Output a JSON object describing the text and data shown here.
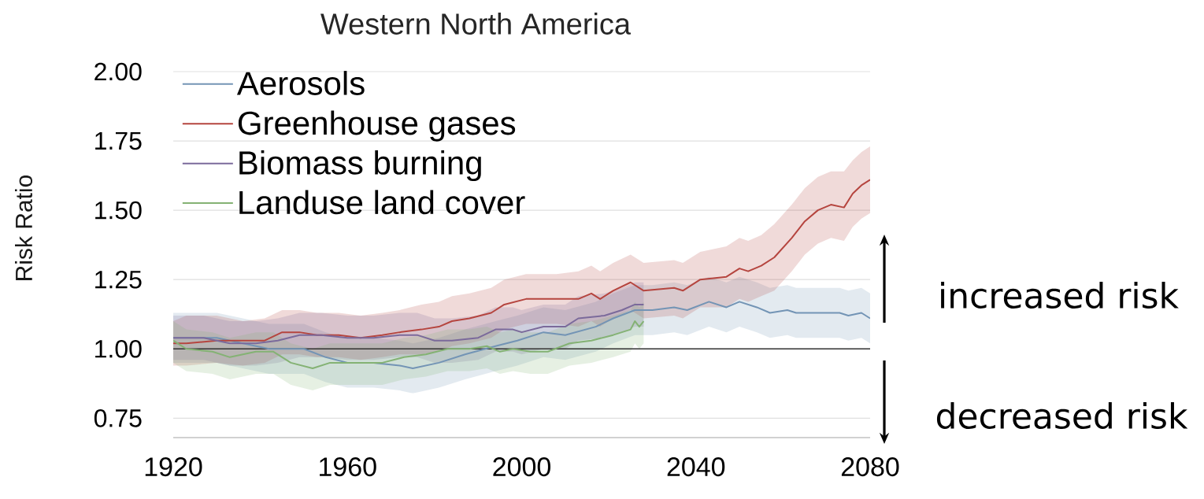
{
  "chart_data": {
    "type": "line",
    "title": "Western North America",
    "ylabel": "Risk Ratio",
    "annotations": [
      "increased risk",
      "decreased risk"
    ],
    "xlim": [
      1920,
      2080
    ],
    "ylim": [
      0.68,
      2.0
    ],
    "xticks": [
      1920,
      1960,
      2000,
      2040,
      2080
    ],
    "yticks": [
      {
        "value": 0.75,
        "label": "0.75"
      },
      {
        "value": 1.0,
        "label": "1.00"
      },
      {
        "value": 1.25,
        "label": "1.25"
      },
      {
        "value": 1.5,
        "label": "1.50"
      },
      {
        "value": 1.75,
        "label": "1.75"
      },
      {
        "value": 2.0,
        "label": "2.00"
      }
    ],
    "grid": "y",
    "legend": "top left",
    "marker": "none",
    "line_style": "solid",
    "ref_lines": [
      {
        "axis": "y",
        "value": 1,
        "color": "#333333"
      }
    ],
    "series": [
      {
        "name": "Aerosols",
        "color": "#7394b5",
        "x": [
          1920,
          1924,
          1930,
          1936,
          1942,
          1950,
          1955,
          1960,
          1966,
          1972,
          1975,
          1981,
          1987,
          1994,
          1999,
          2005,
          2010,
          2017,
          2021,
          2026,
          2030,
          2035,
          2038,
          2043,
          2047,
          2050,
          2054,
          2057,
          2061,
          2063,
          2068,
          2073,
          2075,
          2078,
          2080
        ],
        "values": [
          1.04,
          1.04,
          1.04,
          1.02,
          1.0,
          1.0,
          0.97,
          0.95,
          0.95,
          0.94,
          0.93,
          0.95,
          0.98,
          1.01,
          1.03,
          1.06,
          1.05,
          1.08,
          1.11,
          1.14,
          1.14,
          1.15,
          1.14,
          1.17,
          1.15,
          1.17,
          1.15,
          1.13,
          1.14,
          1.13,
          1.13,
          1.13,
          1.12,
          1.13,
          1.11
        ],
        "upper": [
          1.13,
          1.13,
          1.13,
          1.11,
          1.09,
          1.09,
          1.06,
          1.04,
          1.04,
          1.03,
          1.02,
          1.04,
          1.07,
          1.1,
          1.12,
          1.15,
          1.14,
          1.17,
          1.2,
          1.23,
          1.23,
          1.24,
          1.23,
          1.26,
          1.24,
          1.26,
          1.24,
          1.22,
          1.23,
          1.22,
          1.22,
          1.22,
          1.21,
          1.22,
          1.2
        ],
        "lower": [
          0.95,
          0.95,
          0.95,
          0.93,
          0.91,
          0.91,
          0.88,
          0.86,
          0.86,
          0.85,
          0.84,
          0.86,
          0.89,
          0.92,
          0.94,
          0.97,
          0.96,
          0.99,
          1.02,
          1.05,
          1.05,
          1.06,
          1.05,
          1.08,
          1.06,
          1.08,
          1.06,
          1.04,
          1.05,
          1.04,
          1.04,
          1.04,
          1.03,
          1.04,
          1.02
        ]
      },
      {
        "name": "Greenhouse gases",
        "color": "#b5453f",
        "x": [
          1920,
          1923,
          1930,
          1936,
          1941,
          1945,
          1949,
          1953,
          1958,
          1963,
          1968,
          1972,
          1977,
          1981,
          1984,
          1988,
          1993,
          1996,
          2001,
          2008,
          2013,
          2016,
          2018,
          2021,
          2025,
          2028,
          2035,
          2037,
          2041,
          2047,
          2050,
          2052,
          2055,
          2058,
          2062,
          2065,
          2068,
          2071,
          2074,
          2076,
          2078,
          2080
        ],
        "values": [
          1.02,
          1.02,
          1.03,
          1.03,
          1.03,
          1.06,
          1.06,
          1.05,
          1.05,
          1.04,
          1.05,
          1.06,
          1.07,
          1.08,
          1.1,
          1.11,
          1.13,
          1.16,
          1.18,
          1.18,
          1.18,
          1.2,
          1.18,
          1.21,
          1.24,
          1.21,
          1.22,
          1.21,
          1.25,
          1.26,
          1.29,
          1.28,
          1.3,
          1.33,
          1.4,
          1.46,
          1.5,
          1.52,
          1.51,
          1.56,
          1.59,
          1.61
        ],
        "upper": [
          1.1,
          1.12,
          1.12,
          1.1,
          1.11,
          1.14,
          1.14,
          1.13,
          1.13,
          1.12,
          1.13,
          1.14,
          1.16,
          1.17,
          1.19,
          1.2,
          1.22,
          1.25,
          1.27,
          1.27,
          1.28,
          1.3,
          1.28,
          1.31,
          1.34,
          1.31,
          1.32,
          1.31,
          1.35,
          1.37,
          1.4,
          1.39,
          1.41,
          1.45,
          1.52,
          1.58,
          1.62,
          1.64,
          1.64,
          1.68,
          1.71,
          1.73
        ],
        "lower": [
          0.94,
          0.94,
          0.95,
          0.94,
          0.95,
          0.98,
          0.98,
          0.97,
          0.97,
          0.96,
          0.97,
          0.98,
          0.98,
          0.99,
          1.01,
          1.02,
          1.04,
          1.07,
          1.09,
          1.09,
          1.08,
          1.1,
          1.08,
          1.11,
          1.14,
          1.11,
          1.12,
          1.11,
          1.15,
          1.15,
          1.18,
          1.17,
          1.19,
          1.21,
          1.28,
          1.34,
          1.38,
          1.4,
          1.39,
          1.44,
          1.47,
          1.49
        ]
      },
      {
        "name": "Biomass burning",
        "color": "#7b6a9b",
        "x": [
          1920,
          1927,
          1933,
          1939,
          1944,
          1949,
          1954,
          1960,
          1966,
          1972,
          1976,
          1980,
          1984,
          1990,
          1994,
          1998,
          2000,
          2005,
          2010,
          2013,
          2019,
          2023,
          2026,
          2028
        ],
        "values": [
          1.04,
          1.04,
          1.02,
          1.02,
          1.03,
          1.05,
          1.05,
          1.04,
          1.04,
          1.05,
          1.05,
          1.03,
          1.03,
          1.04,
          1.07,
          1.07,
          1.06,
          1.08,
          1.08,
          1.11,
          1.12,
          1.14,
          1.16,
          1.16
        ],
        "upper": [
          1.12,
          1.12,
          1.1,
          1.1,
          1.11,
          1.13,
          1.13,
          1.12,
          1.12,
          1.13,
          1.13,
          1.11,
          1.11,
          1.12,
          1.15,
          1.15,
          1.14,
          1.16,
          1.16,
          1.19,
          1.2,
          1.22,
          1.24,
          1.24
        ],
        "lower": [
          0.96,
          0.96,
          0.94,
          0.94,
          0.95,
          0.97,
          0.97,
          0.96,
          0.96,
          0.97,
          0.97,
          0.95,
          0.95,
          0.96,
          0.99,
          0.99,
          0.98,
          1.0,
          1.0,
          1.03,
          1.04,
          1.06,
          1.08,
          1.08
        ]
      },
      {
        "name": "Landuse land cover",
        "color": "#84b274",
        "x": [
          1920,
          1923,
          1929,
          1933,
          1939,
          1943,
          1947,
          1952,
          1956,
          1961,
          1968,
          1973,
          1978,
          1983,
          1988,
          1992,
          1995,
          1998,
          2002,
          2006,
          2011,
          2016,
          2021,
          2025,
          2026,
          2027,
          2028
        ],
        "values": [
          1.03,
          1.0,
          0.99,
          0.97,
          0.99,
          0.99,
          0.95,
          0.93,
          0.95,
          0.95,
          0.95,
          0.97,
          0.98,
          1.0,
          1.0,
          1.01,
          0.99,
          1.0,
          0.99,
          0.99,
          1.02,
          1.03,
          1.05,
          1.07,
          1.1,
          1.08,
          1.1
        ],
        "upper": [
          1.1,
          1.07,
          1.06,
          1.04,
          1.06,
          1.06,
          1.02,
          1.0,
          1.02,
          1.02,
          1.02,
          1.04,
          1.05,
          1.07,
          1.07,
          1.08,
          1.06,
          1.07,
          1.06,
          1.06,
          1.09,
          1.1,
          1.12,
          1.14,
          1.17,
          1.15,
          1.17
        ],
        "lower": [
          0.95,
          0.92,
          0.91,
          0.89,
          0.91,
          0.91,
          0.87,
          0.85,
          0.87,
          0.87,
          0.87,
          0.89,
          0.9,
          0.92,
          0.92,
          0.93,
          0.91,
          0.92,
          0.91,
          0.91,
          0.94,
          0.95,
          0.97,
          0.99,
          1.02,
          1.0,
          1.02
        ]
      }
    ]
  }
}
